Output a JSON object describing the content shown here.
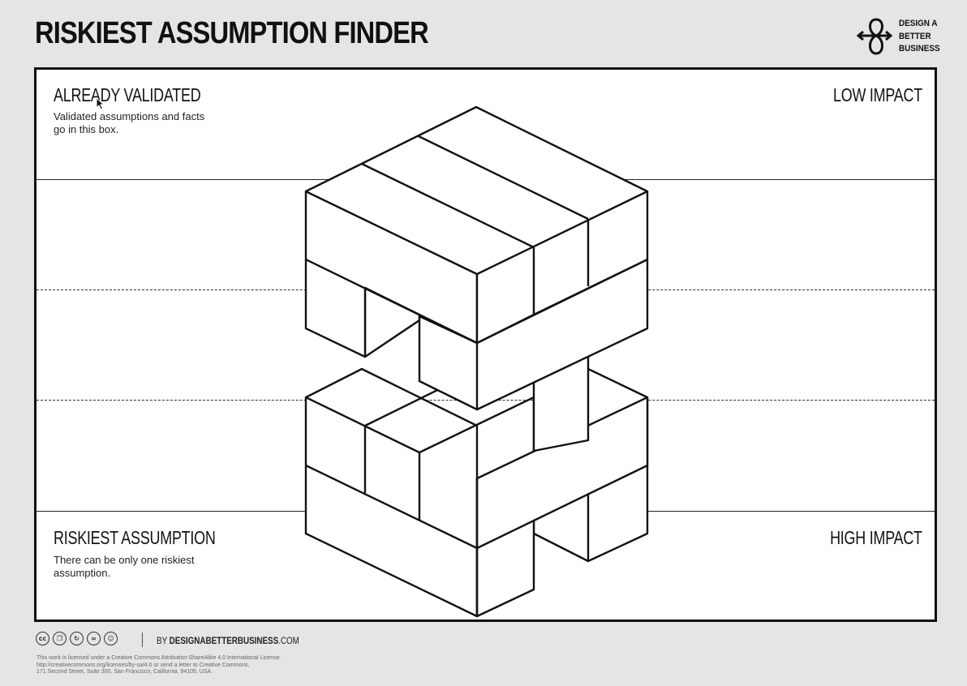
{
  "header": {
    "title": "RISKIEST ASSUMPTION FINDER",
    "logo": {
      "icon": "design-a-better-business-logo-icon",
      "lines": [
        "DESIGN A",
        "BETTER",
        "BUSINESS"
      ]
    }
  },
  "canvas": {
    "top_left": {
      "title": "ALREADY VALIDATED",
      "description": "Validated assumptions and facts go in this box."
    },
    "top_right": {
      "title": "LOW IMPACT"
    },
    "bottom_left": {
      "title": "RISKIEST ASSUMPTION",
      "description": "There can be only one riskiest assumption."
    },
    "bottom_right": {
      "title": "HIGH IMPACT"
    }
  },
  "footer": {
    "license_icons": [
      "cc-icon",
      "copy-icon",
      "share-alike-icon",
      "remix-icon",
      "attribution-icon"
    ],
    "by_prefix": "BY ",
    "by_domain_bold": "DESIGNABETTERBUSINESS",
    "by_domain_suffix": ".COM",
    "license_lines": [
      "This work is licensed under a Creative Commons Attribution-ShareAlike 4.0 International License.",
      "http://creativecommons.org/licenses/by-sa/4.0 or send a letter to Creative Commons,",
      "171 Second Street, Suite 300, San Francisco, California, 94105, USA."
    ]
  },
  "colors": {
    "background": "#e5e5e5",
    "canvas": "#ffffff",
    "ink": "#111111"
  }
}
